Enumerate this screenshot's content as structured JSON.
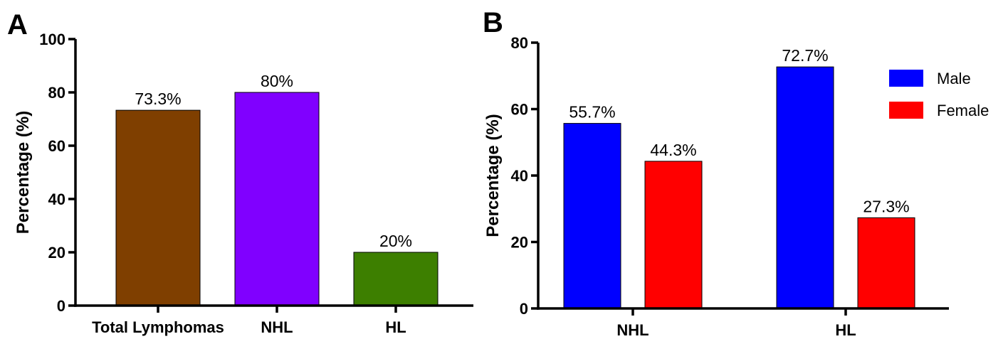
{
  "chart_data": [
    {
      "panel": "A",
      "type": "bar",
      "categories": [
        "Total Lymphomas",
        "NHL",
        "HL"
      ],
      "values": [
        73.3,
        80,
        20
      ],
      "value_labels": [
        "73.3%",
        "80%",
        "20%"
      ],
      "colors": [
        "#7f3f00",
        "#8000ff",
        "#3d7f00"
      ],
      "ylabel": "Percentage (%)",
      "xlabel": "",
      "ylim": [
        0,
        100
      ],
      "yticks": [
        0,
        20,
        40,
        60,
        80,
        100
      ],
      "grid": false
    },
    {
      "panel": "B",
      "type": "bar",
      "categories": [
        "NHL",
        "HL"
      ],
      "series": [
        {
          "name": "Male",
          "color": "#0000ff",
          "values": [
            55.7,
            72.7
          ],
          "value_labels": [
            "55.7%",
            "72.7%"
          ]
        },
        {
          "name": "Female",
          "color": "#ff0000",
          "values": [
            44.3,
            27.3
          ],
          "value_labels": [
            "44.3%",
            "27.3%"
          ]
        }
      ],
      "ylabel": "Percentage (%)",
      "xlabel": "",
      "ylim": [
        0,
        80
      ],
      "yticks": [
        0,
        20,
        40,
        60,
        80
      ],
      "legend": "top-right",
      "grid": false
    }
  ]
}
